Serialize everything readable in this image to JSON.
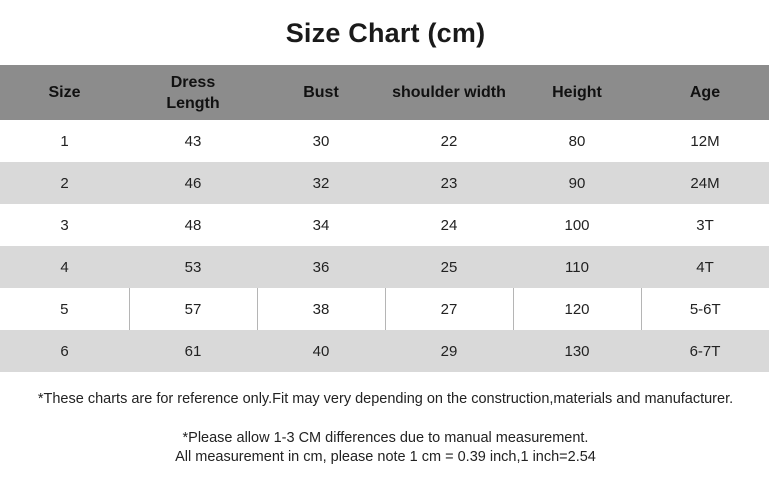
{
  "title": "Size Chart (cm)",
  "colors": {
    "header_bg": "#8c8c8c",
    "stripe_bg": "#d9d9d9",
    "corner_mark": "#2e8b3a"
  },
  "table": {
    "headers": [
      "Size",
      "Dress\nLength",
      "Bust",
      "shoulder width",
      "Height",
      "Age"
    ],
    "rows": [
      [
        "1",
        "43",
        "30",
        "22",
        "80",
        "12M"
      ],
      [
        "2",
        "46",
        "32",
        "23",
        "90",
        "24M"
      ],
      [
        "3",
        "48",
        "34",
        "24",
        "100",
        "3T"
      ],
      [
        "4",
        "53",
        "36",
        "25",
        "110",
        "4T"
      ],
      [
        "5",
        "57",
        "38",
        "27",
        "120",
        "5-6T"
      ],
      [
        "6",
        "61",
        "40",
        "29",
        "130",
        "6-7T"
      ]
    ]
  },
  "notes": {
    "reference": "*These charts are for reference only.Fit may very depending on the construction,materials and manufacturer.",
    "difference": "*Please allow 1-3 CM differences due to manual measurement.",
    "conversion": "All measurement in cm, please note 1 cm = 0.39 inch,1 inch=2.54"
  }
}
